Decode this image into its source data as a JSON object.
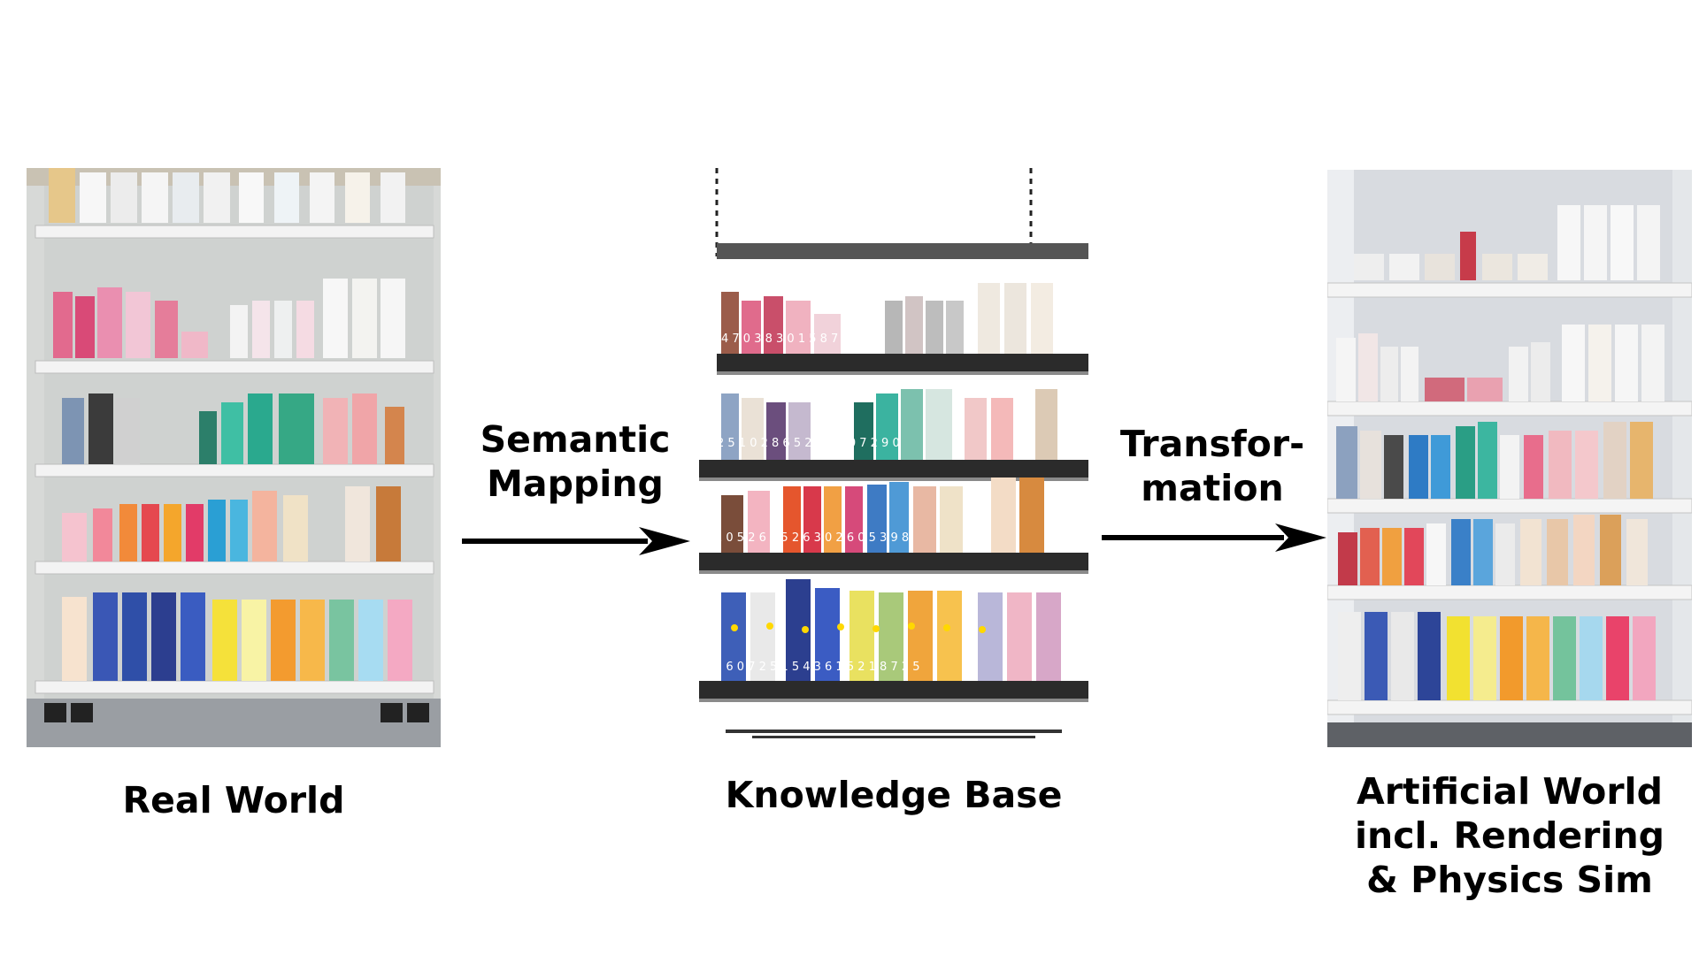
{
  "captions": {
    "real_world": "Real World",
    "knowledge_base": "Knowledge Base",
    "artificial_world": [
      "Artificial World",
      "incl. Rendering",
      "& Physics Sim"
    ]
  },
  "arrows": {
    "semantic_mapping": [
      "Semantic",
      "Mapping"
    ],
    "transformation": [
      "Transfor-",
      "mation"
    ]
  },
  "shelf_labels": {
    "row1": "4 7 0 3 8 3 0 1 5 8 7 2 8 7",
    "row2": "2 5 1 0 2 8 6 5 2 3 8 3 0 7 2 9 0",
    "row3": "1 0 5 2 6 0 5 2 6 3 0 2 6 0 5 3 9 8",
    "row4": "2 6 0 7 2 5 1 5 4 3 6 1 5 2 1 8 7 2 5"
  },
  "colors": {
    "arrow": "#000000",
    "shelf": "#f2f2f2",
    "floor": "#9a9ea3"
  }
}
